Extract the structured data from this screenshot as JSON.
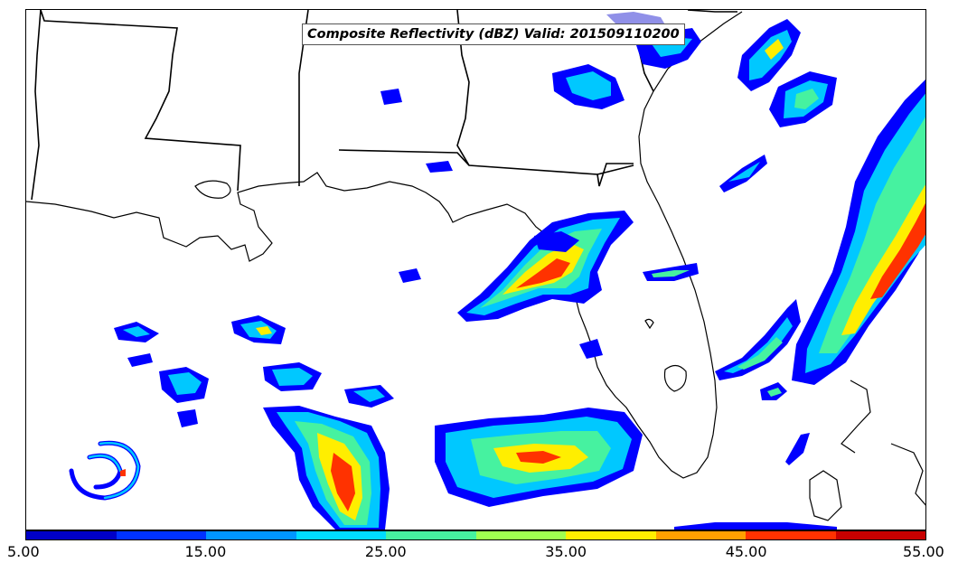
{
  "title": "Composite Reflectivity (dBZ) Valid: 201509110200",
  "colorbar": {
    "colors": [
      "#0000c8",
      "#0032ff",
      "#0096ff",
      "#00dcff",
      "#46f2a0",
      "#a0ff50",
      "#ffee00",
      "#ffa000",
      "#ff3200",
      "#c80000"
    ],
    "tick_labels": [
      "5.00",
      "15.00",
      "25.00",
      "35.00",
      "45.00",
      "55.00"
    ],
    "range": [
      5,
      55
    ]
  },
  "map": {
    "features": [
      "state-boundaries",
      "coastlines",
      "lakes",
      "radar-echoes"
    ],
    "echo_palette": [
      "#0000ff",
      "#00c8ff",
      "#46f2a0",
      "#ffee00",
      "#ff3200"
    ]
  }
}
